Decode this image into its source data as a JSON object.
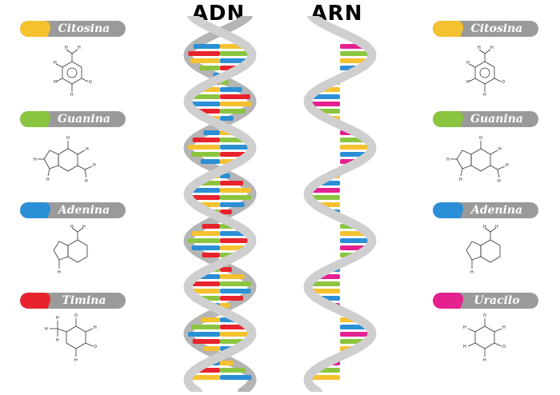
{
  "titles": {
    "dna": "ADN",
    "rna": "ARN"
  },
  "dna_bases": [
    {
      "name": "Citosina",
      "color": "#f5c12e"
    },
    {
      "name": "Guanina",
      "color": "#8bc53f"
    },
    {
      "name": "Adenina",
      "color": "#2a8fd6"
    },
    {
      "name": "Timina",
      "color": "#e8232e"
    }
  ],
  "rna_bases": [
    {
      "name": "Citosina",
      "color": "#f5c12e"
    },
    {
      "name": "Guanina",
      "color": "#8bc53f"
    },
    {
      "name": "Adenina",
      "color": "#2a8fd6"
    },
    {
      "name": "Uracilo",
      "color": "#e5208f"
    }
  ],
  "colors": {
    "pill": "#9a9a9a",
    "backbone": "#cfcfcf",
    "backbone_dark": "#b5b5b5"
  },
  "structures": [
    "cytosine",
    "guanine",
    "adenine",
    "thymine"
  ],
  "structures_right": [
    "cytosine",
    "guanine",
    "adenine",
    "uracil"
  ]
}
